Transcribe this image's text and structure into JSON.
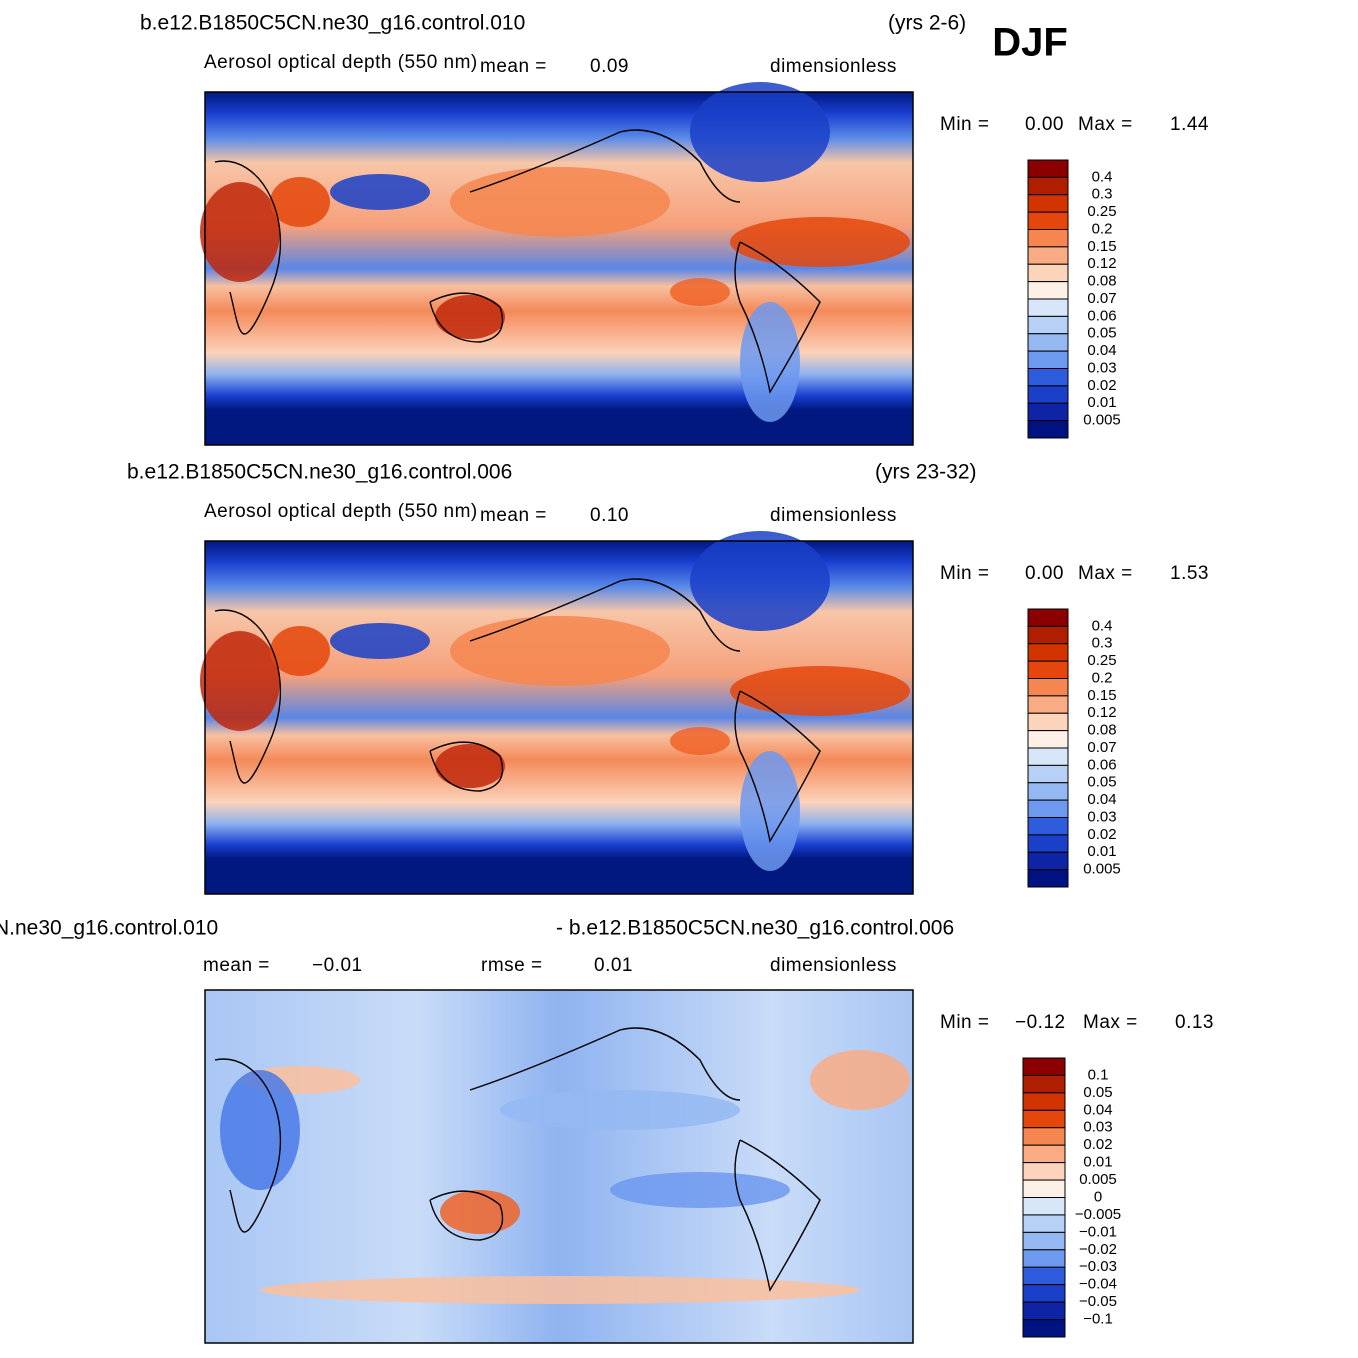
{
  "season": "DJF",
  "panels": [
    {
      "title": "b.e12.B1850C5CN.ne30_g16.control.010",
      "period": "(yrs 2-6)",
      "subtitle": "Aerosol optical depth (550 nm)",
      "mean_label": "mean =",
      "mean": "0.09",
      "units": "dimensionless",
      "min_label": "Min =",
      "min": "0.00",
      "max_label": "Max =",
      "max": "1.44",
      "colorbar": [
        "0.4",
        "0.3",
        "0.25",
        "0.2",
        "0.15",
        "0.12",
        "0.08",
        "0.07",
        "0.06",
        "0.05",
        "0.04",
        "0.03",
        "0.02",
        "0.01",
        "0.005"
      ]
    },
    {
      "title": "b.e12.B1850C5CN.ne30_g16.control.006",
      "period": "(yrs 23-32)",
      "subtitle": "Aerosol optical depth (550 nm)",
      "mean_label": "mean =",
      "mean": "0.10",
      "units": "dimensionless",
      "min_label": "Min =",
      "min": "0.00",
      "max_label": "Max =",
      "max": "1.53",
      "colorbar": [
        "0.4",
        "0.3",
        "0.25",
        "0.2",
        "0.15",
        "0.12",
        "0.08",
        "0.07",
        "0.06",
        "0.05",
        "0.04",
        "0.03",
        "0.02",
        "0.01",
        "0.005"
      ]
    },
    {
      "title": "N.ne30_g16.control.010",
      "title_right": "- b.e12.B1850C5CN.ne30_g16.control.006",
      "mean_label": "mean =",
      "mean": "−0.01",
      "rmse_label": "rmse =",
      "rmse": "0.01",
      "units": "dimensionless",
      "min_label": "Min =",
      "min": "−0.12",
      "max_label": "Max =",
      "max": "0.13",
      "colorbar": [
        "0.1",
        "0.05",
        "0.04",
        "0.03",
        "0.02",
        "0.01",
        "0.005",
        "0",
        "−0.005",
        "−0.01",
        "−0.02",
        "−0.03",
        "−0.04",
        "−0.05",
        "−0.1"
      ]
    }
  ]
}
